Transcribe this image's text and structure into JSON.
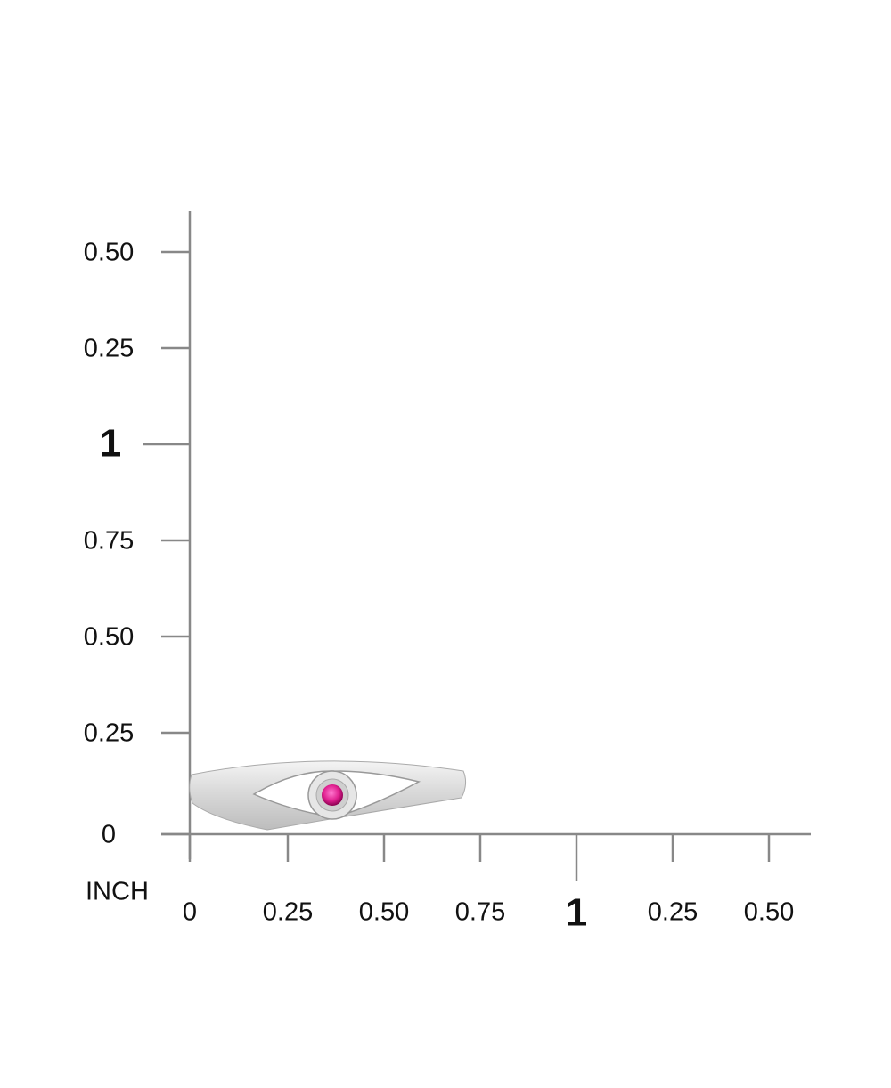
{
  "ruler": {
    "unit": "INCH",
    "y_labels": [
      "0.50",
      "0.25",
      "1",
      "0.75",
      "0.50",
      "0.25",
      "0"
    ],
    "x_labels": [
      "0",
      "0.25",
      "0.50",
      "0.75",
      "1",
      "0.25",
      "0.50"
    ]
  }
}
